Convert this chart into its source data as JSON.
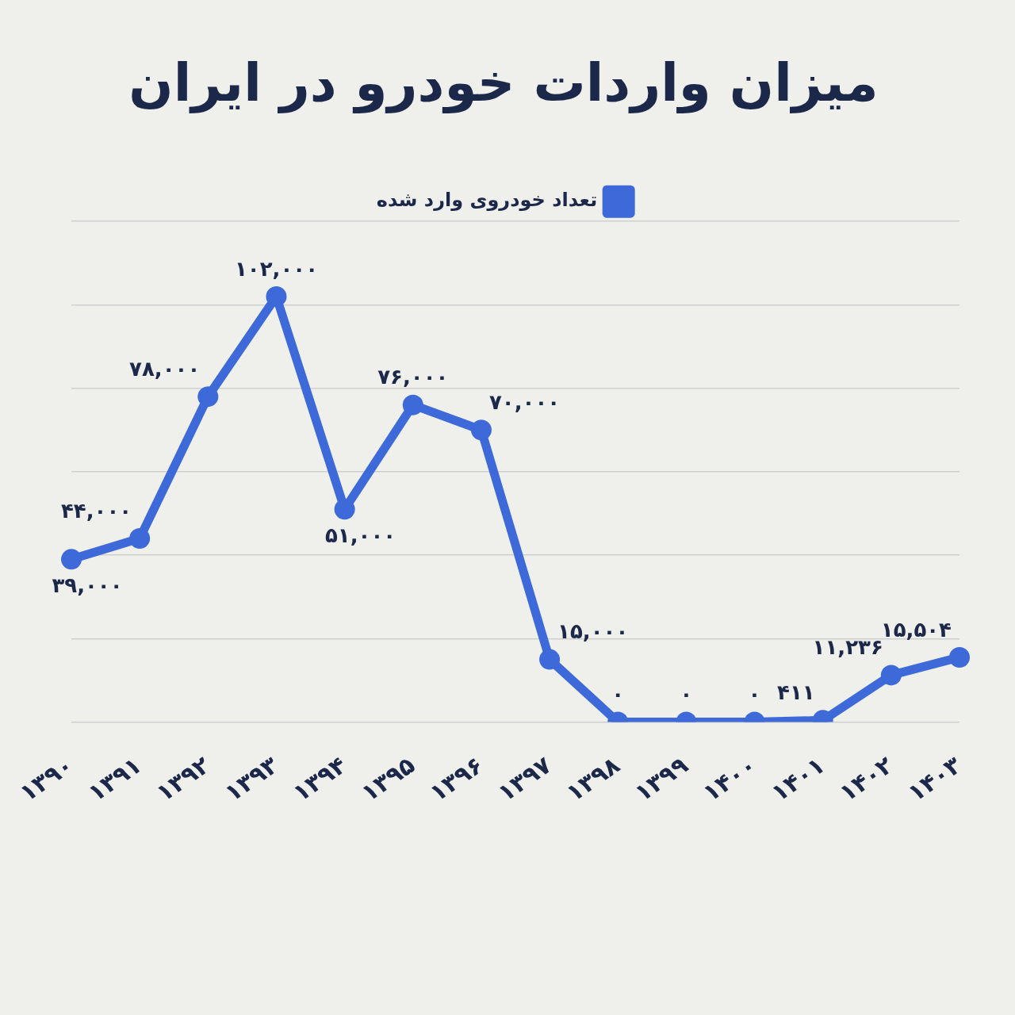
{
  "chart_data": {
    "type": "line",
    "title": "میزان واردات خودرو در ایران",
    "categories": [
      "۱۳۹۰",
      "۱۳۹۱",
      "۱۳۹۲",
      "۱۳۹۳",
      "۱۳۹۴",
      "۱۳۹۵",
      "۱۳۹۶",
      "۱۳۹۷",
      "۱۳۹۸",
      "۱۳۹۹",
      "۱۴۰۰",
      "۱۴۰۱",
      "۱۴۰۲",
      "۱۴۰۳"
    ],
    "series": [
      {
        "name": "تعداد خودروی وارد شده",
        "color": "#3d6ad8",
        "values": [
          39000,
          44000,
          78000,
          102000,
          51000,
          76000,
          70000,
          15000,
          0,
          0,
          0,
          411,
          11236,
          15504
        ],
        "value_labels": [
          "۳۹,۰۰۰",
          "۴۴,۰۰۰",
          "۷۸,۰۰۰",
          "۱۰۲,۰۰۰",
          "۵۱,۰۰۰",
          "۷۶,۰۰۰",
          "۷۰,۰۰۰",
          "۱۵,۰۰۰",
          "۰",
          "۰",
          "۰",
          "۴۱۱",
          "۱۱,۲۳۶",
          "۱۵,۵۰۴"
        ]
      }
    ],
    "ylim": [
      0,
      120000
    ],
    "yticks": [
      {
        "value": 0,
        "label": null
      },
      {
        "value": 20000,
        "label": null
      },
      {
        "value": 40000,
        "label": null
      },
      {
        "value": 60000,
        "label": null
      },
      {
        "value": 80000,
        "label": null
      },
      {
        "value": 100000,
        "label": null
      },
      {
        "value": 120000,
        "label": null
      }
    ],
    "grid": "y",
    "legend": "top",
    "marker": "circle",
    "line_style": "solid",
    "tick_labels": "x"
  }
}
